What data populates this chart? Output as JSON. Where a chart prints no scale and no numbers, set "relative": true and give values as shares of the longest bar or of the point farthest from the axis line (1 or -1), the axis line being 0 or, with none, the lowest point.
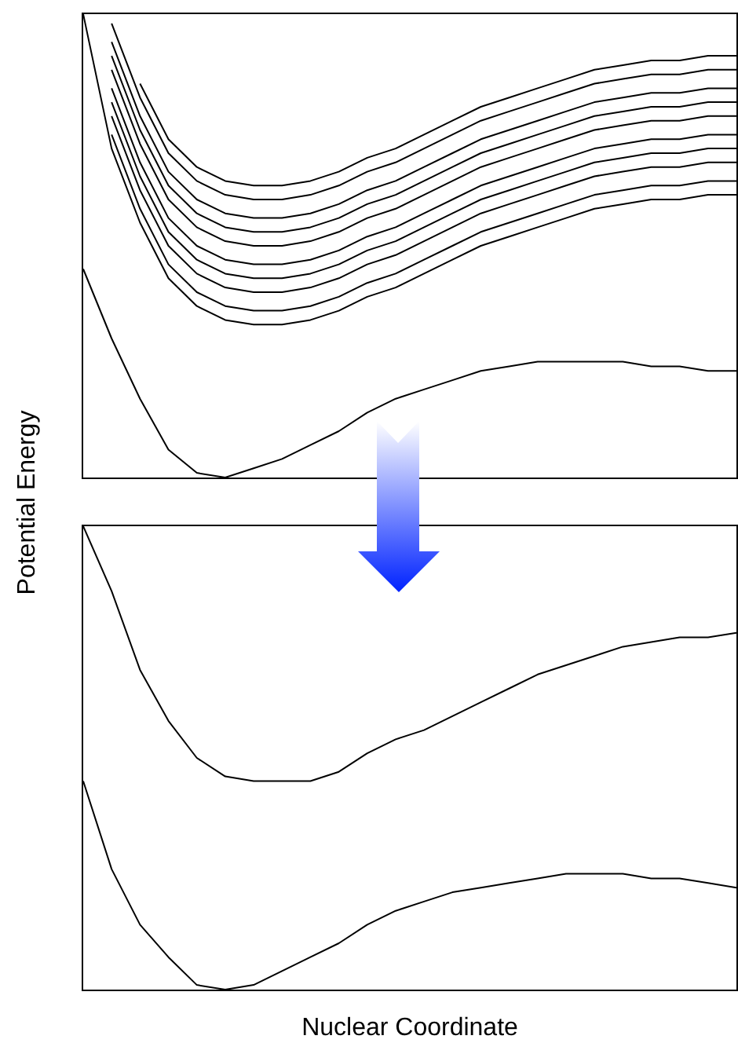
{
  "chart_data": [
    {
      "type": "line",
      "relative": true,
      "tick_labels": false,
      "ylabel": "Potential Energy",
      "categories": [
        null,
        null,
        null,
        null,
        null,
        null,
        null,
        null,
        null,
        null,
        null,
        null,
        null,
        null,
        null,
        null,
        null,
        null,
        null,
        null,
        null,
        null,
        null,
        null
      ],
      "series": [
        {
          "color": "#000000",
          "values": [
            0.45,
            0.3,
            0.17,
            0.06,
            0.01,
            0.0,
            0.02,
            0.04,
            0.07,
            0.1,
            0.14,
            0.17,
            0.19,
            0.21,
            0.23,
            0.24,
            0.25,
            0.25,
            0.25,
            0.25,
            0.24,
            0.24,
            0.23,
            0.23
          ]
        },
        {
          "color": "#000000",
          "values": [
            1.0,
            0.71,
            0.55,
            0.43,
            0.37,
            0.34,
            0.33,
            0.33,
            0.34,
            0.36,
            0.39,
            0.41,
            0.44,
            0.47,
            0.5,
            0.52,
            0.54,
            0.56,
            0.58,
            0.59,
            0.6,
            0.6,
            0.61,
            0.61
          ]
        },
        {
          "color": "#000000",
          "values": [
            null,
            0.74,
            0.58,
            0.46,
            0.4,
            0.37,
            0.36,
            0.36,
            0.37,
            0.39,
            0.42,
            0.44,
            0.47,
            0.5,
            0.53,
            0.55,
            0.57,
            0.59,
            0.61,
            0.62,
            0.63,
            0.63,
            0.64,
            0.64
          ]
        },
        {
          "color": "#000000",
          "values": [
            null,
            0.78,
            0.62,
            0.5,
            0.44,
            0.41,
            0.4,
            0.4,
            0.41,
            0.43,
            0.46,
            0.48,
            0.51,
            0.54,
            0.57,
            0.59,
            0.61,
            0.63,
            0.65,
            0.66,
            0.67,
            0.67,
            0.68,
            0.68
          ]
        },
        {
          "color": "#000000",
          "values": [
            null,
            0.81,
            0.65,
            0.53,
            0.47,
            0.44,
            0.43,
            0.43,
            0.44,
            0.46,
            0.49,
            0.51,
            0.54,
            0.57,
            0.6,
            0.62,
            0.64,
            0.66,
            0.68,
            0.69,
            0.7,
            0.7,
            0.71,
            0.71
          ]
        },
        {
          "color": "#000000",
          "values": [
            null,
            0.84,
            0.68,
            0.56,
            0.5,
            0.47,
            0.46,
            0.46,
            0.47,
            0.49,
            0.52,
            0.54,
            0.57,
            0.6,
            0.63,
            0.65,
            0.67,
            0.69,
            0.71,
            0.72,
            0.73,
            0.73,
            0.74,
            0.74
          ]
        },
        {
          "color": "#000000",
          "values": [
            null,
            0.88,
            0.72,
            0.6,
            0.54,
            0.51,
            0.5,
            0.5,
            0.51,
            0.53,
            0.56,
            0.58,
            0.61,
            0.64,
            0.67,
            0.69,
            0.71,
            0.73,
            0.75,
            0.76,
            0.77,
            0.77,
            0.78,
            0.78
          ]
        },
        {
          "color": "#000000",
          "values": [
            null,
            0.91,
            0.75,
            0.63,
            0.57,
            0.54,
            0.53,
            0.53,
            0.54,
            0.56,
            0.59,
            0.61,
            0.64,
            0.67,
            0.7,
            0.72,
            0.74,
            0.76,
            0.78,
            0.79,
            0.8,
            0.8,
            0.81,
            0.81
          ]
        },
        {
          "color": "#000000",
          "values": [
            null,
            0.94,
            0.78,
            0.66,
            0.6,
            0.57,
            0.56,
            0.56,
            0.57,
            0.59,
            0.62,
            0.64,
            0.67,
            0.7,
            0.73,
            0.75,
            0.77,
            0.79,
            0.81,
            0.82,
            0.83,
            0.83,
            0.84,
            0.84
          ]
        },
        {
          "color": "#000000",
          "values": [
            null,
            0.98,
            0.82,
            0.7,
            0.64,
            0.61,
            0.6,
            0.6,
            0.61,
            0.63,
            0.66,
            0.68,
            0.71,
            0.74,
            0.77,
            0.79,
            0.81,
            0.83,
            0.85,
            0.86,
            0.87,
            0.87,
            0.88,
            0.88
          ]
        },
        {
          "color": "#000000",
          "values": [
            null,
            null,
            0.85,
            0.73,
            0.67,
            0.64,
            0.63,
            0.63,
            0.64,
            0.66,
            0.69,
            0.71,
            0.74,
            0.77,
            0.8,
            0.82,
            0.84,
            0.86,
            0.88,
            0.89,
            0.9,
            0.9,
            0.91,
            0.91
          ]
        }
      ]
    },
    {
      "type": "line",
      "relative": true,
      "tick_labels": false,
      "xlabel": "Nuclear Coordinate",
      "categories": [
        null,
        null,
        null,
        null,
        null,
        null,
        null,
        null,
        null,
        null,
        null,
        null,
        null,
        null,
        null,
        null,
        null,
        null,
        null,
        null,
        null,
        null,
        null,
        null
      ],
      "series": [
        {
          "color": "#000000",
          "values": [
            0.45,
            0.26,
            0.14,
            0.07,
            0.01,
            0.0,
            0.01,
            0.04,
            0.07,
            0.1,
            0.14,
            0.17,
            0.19,
            0.21,
            0.22,
            0.23,
            0.24,
            0.25,
            0.25,
            0.25,
            0.24,
            0.24,
            0.23,
            0.22
          ]
        },
        {
          "color": "#000000",
          "values": [
            1.0,
            0.86,
            0.69,
            0.58,
            0.5,
            0.46,
            0.45,
            0.45,
            0.45,
            0.47,
            0.51,
            0.54,
            0.56,
            0.59,
            0.62,
            0.65,
            0.68,
            0.7,
            0.72,
            0.74,
            0.75,
            0.76,
            0.76,
            0.77
          ]
        }
      ]
    }
  ]
}
